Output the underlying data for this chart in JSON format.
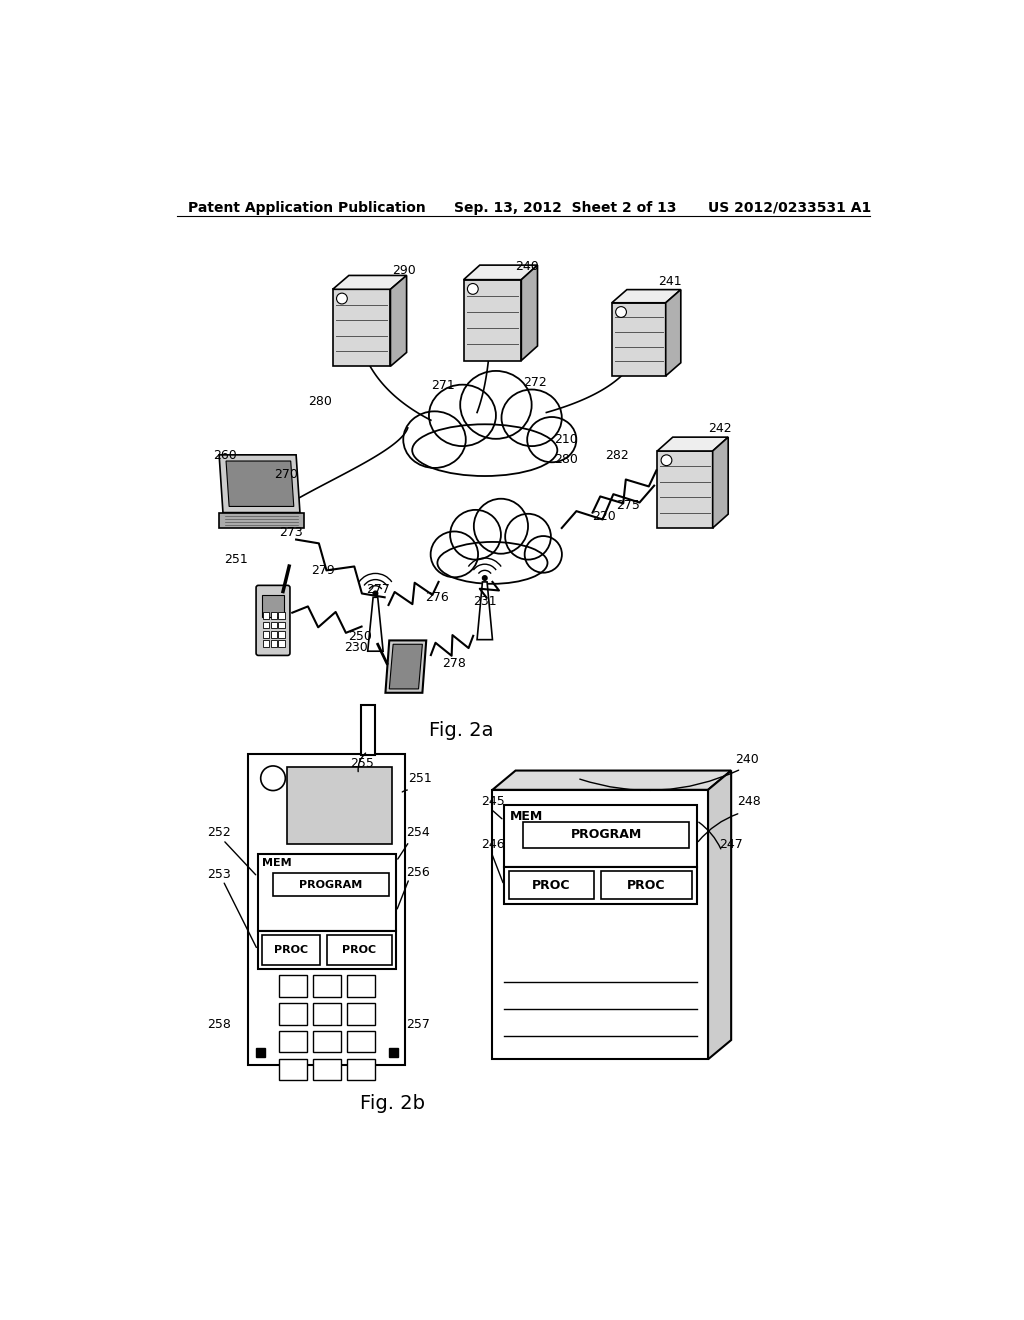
{
  "bg_color": "#ffffff",
  "header_left": "Patent Application Publication",
  "header_center": "Sep. 13, 2012  Sheet 2 of 13",
  "header_right": "US 2012/0233531 A1",
  "fig2a_label": "Fig. 2a",
  "fig2b_label": "Fig. 2b"
}
